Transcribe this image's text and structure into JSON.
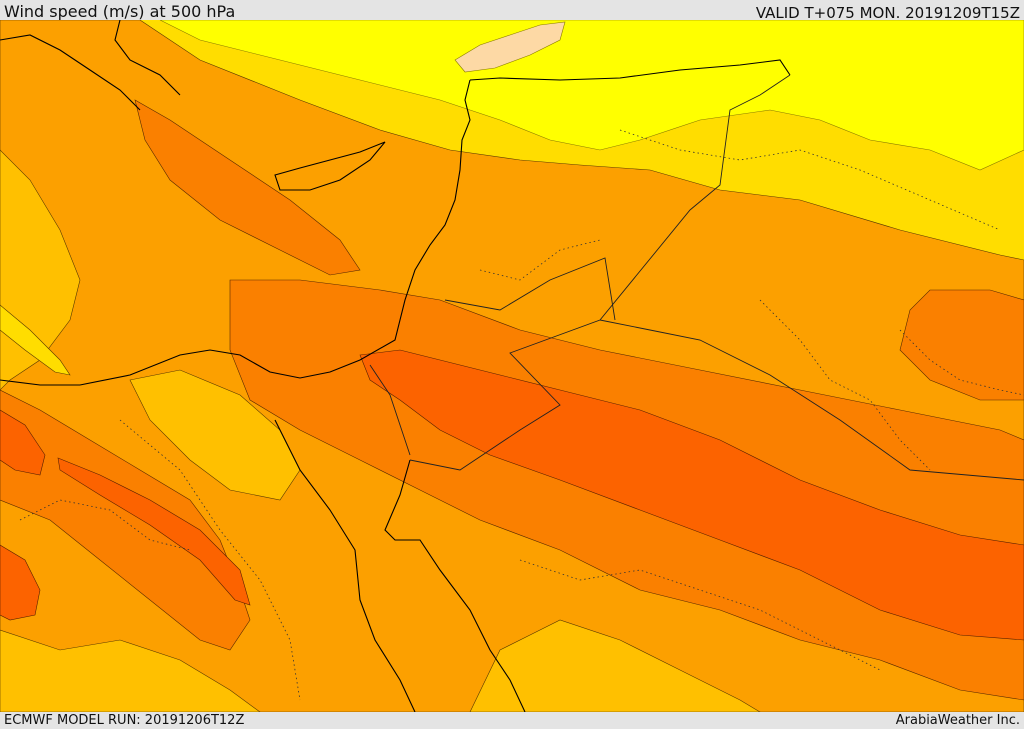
{
  "header": {
    "title": "Wind speed (m/s) at 500 hPa",
    "valid_time": "VALID T+075 MON. 20191209T15Z"
  },
  "footer": {
    "model_run": "ECMWF MODEL RUN: 20191206T12Z",
    "credit": "ArabiaWeather Inc."
  },
  "map": {
    "field": "wind speed at 500 hPa",
    "region": "Eastern Mediterranean / Middle East",
    "palette": {
      "peach": "#fdd9a5",
      "yellow": "#ffff00",
      "gold": "#ffdd00",
      "amber": "#ffc000",
      "orange": "#fca000",
      "dark_orange": "#fa8000",
      "red_orange": "#fc6300",
      "coastline": "#000000",
      "border": "#333333"
    }
  }
}
